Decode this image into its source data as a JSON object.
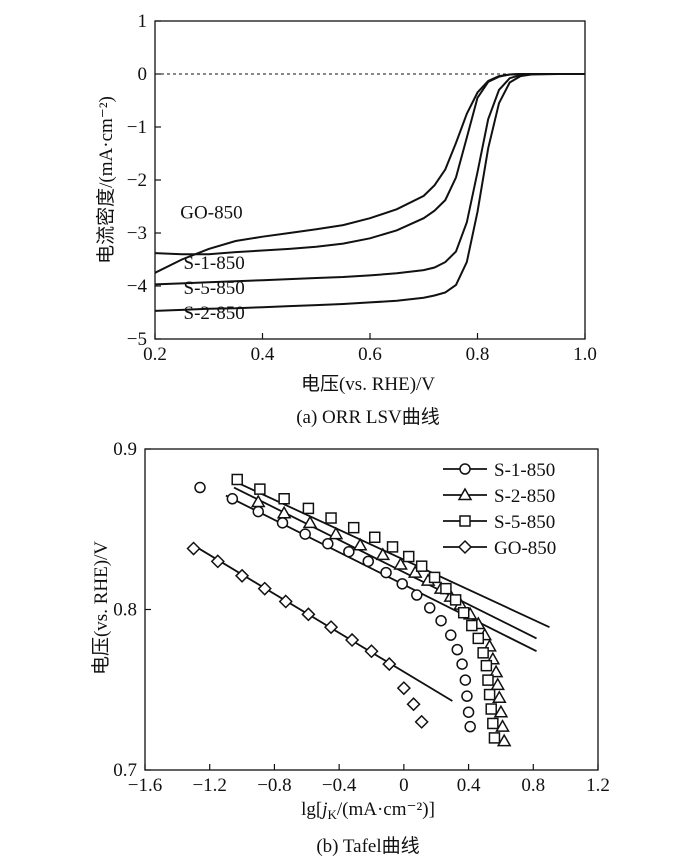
{
  "chart_data": [
    {
      "type": "line",
      "caption": "(a) ORR LSV曲线",
      "xlabel": "电压(vs. RHE)/V",
      "ylabel": "电流密度/(mA·cm⁻²)",
      "xlim": [
        0.2,
        1.0
      ],
      "ylim": [
        -5,
        1
      ],
      "xticks": [
        "0.2",
        "0.4",
        "0.6",
        "0.8",
        "1.0"
      ],
      "yticks": [
        "1",
        "0",
        "−1",
        "−2",
        "−3",
        "−4",
        "−5"
      ],
      "reference_line_y": 0,
      "series": [
        {
          "name": "GO-850",
          "label": "GO-850",
          "x": [
            0.2,
            0.25,
            0.3,
            0.35,
            0.4,
            0.45,
            0.5,
            0.55,
            0.6,
            0.65,
            0.7,
            0.72,
            0.74,
            0.76,
            0.78,
            0.8,
            0.82,
            0.84,
            0.86,
            0.88,
            0.9,
            0.95,
            1.0
          ],
          "y": [
            -3.75,
            -3.5,
            -3.3,
            -3.15,
            -3.07,
            -3.0,
            -2.93,
            -2.85,
            -2.72,
            -2.55,
            -2.3,
            -2.1,
            -1.8,
            -1.3,
            -0.75,
            -0.35,
            -0.13,
            -0.04,
            -0.01,
            0.0,
            0.0,
            0.0,
            0.0
          ]
        },
        {
          "name": "S-1-850",
          "label": "S-1-850",
          "x": [
            0.2,
            0.25,
            0.3,
            0.35,
            0.4,
            0.45,
            0.5,
            0.55,
            0.6,
            0.65,
            0.7,
            0.72,
            0.74,
            0.76,
            0.78,
            0.8,
            0.82,
            0.84,
            0.86,
            0.88,
            0.9,
            0.95,
            1.0
          ],
          "y": [
            -3.38,
            -3.4,
            -3.4,
            -3.36,
            -3.33,
            -3.3,
            -3.26,
            -3.2,
            -3.1,
            -2.95,
            -2.72,
            -2.58,
            -2.38,
            -1.95,
            -1.2,
            -0.45,
            -0.15,
            -0.05,
            -0.01,
            0.0,
            0.0,
            0.0,
            0.0
          ]
        },
        {
          "name": "S-5-850",
          "label": "S-5-850",
          "x": [
            0.2,
            0.25,
            0.3,
            0.35,
            0.4,
            0.45,
            0.5,
            0.55,
            0.6,
            0.65,
            0.7,
            0.72,
            0.74,
            0.76,
            0.78,
            0.8,
            0.82,
            0.84,
            0.86,
            0.88,
            0.9,
            0.95,
            1.0
          ],
          "y": [
            -3.97,
            -3.95,
            -3.93,
            -3.91,
            -3.89,
            -3.87,
            -3.85,
            -3.83,
            -3.8,
            -3.76,
            -3.7,
            -3.65,
            -3.55,
            -3.35,
            -2.8,
            -1.85,
            -0.85,
            -0.3,
            -0.08,
            -0.02,
            0.0,
            0.0,
            0.0
          ]
        },
        {
          "name": "S-2-850",
          "label": "S-2-850",
          "x": [
            0.2,
            0.25,
            0.3,
            0.35,
            0.4,
            0.45,
            0.5,
            0.55,
            0.6,
            0.65,
            0.7,
            0.72,
            0.74,
            0.76,
            0.78,
            0.8,
            0.82,
            0.84,
            0.86,
            0.88,
            0.9,
            0.95,
            1.0
          ],
          "y": [
            -4.47,
            -4.45,
            -4.43,
            -4.42,
            -4.4,
            -4.38,
            -4.36,
            -4.34,
            -4.31,
            -4.28,
            -4.22,
            -4.18,
            -4.12,
            -3.98,
            -3.55,
            -2.6,
            -1.4,
            -0.55,
            -0.16,
            -0.04,
            -0.01,
            0.0,
            0.0
          ]
        }
      ]
    },
    {
      "type": "scatter",
      "caption": "(b) Tafel曲线",
      "xlabel": "lg[jK/(mA·cm⁻²)]",
      "ylabel": "电压(vs. RHE)/V",
      "xlim": [
        -1.6,
        1.2
      ],
      "ylim": [
        0.7,
        0.9
      ],
      "xticks": [
        "−1.6",
        "−1.2",
        "−0.8",
        "−0.4",
        "0",
        "0.4",
        "0.8",
        "1.2"
      ],
      "yticks": [
        "0.9",
        "0.8",
        "0.7"
      ],
      "legend_position": "top-right",
      "series": [
        {
          "name": "S-1-850",
          "marker": "circle",
          "x": [
            -1.26,
            -1.06,
            -0.9,
            -0.75,
            -0.61,
            -0.47,
            -0.34,
            -0.22,
            -0.11,
            -0.01,
            0.08,
            0.16,
            0.23,
            0.29,
            0.33,
            0.36,
            0.38,
            0.39,
            0.4,
            0.41
          ],
          "y": [
            0.876,
            0.869,
            0.861,
            0.854,
            0.847,
            0.841,
            0.836,
            0.83,
            0.823,
            0.816,
            0.809,
            0.801,
            0.793,
            0.784,
            0.775,
            0.766,
            0.756,
            0.746,
            0.736,
            0.727
          ],
          "fit": {
            "x": [
              -1.1,
              0.82
            ],
            "y": [
              0.871,
              0.774
            ]
          }
        },
        {
          "name": "S-2-850",
          "marker": "triangle",
          "x": [
            -0.9,
            -0.74,
            -0.58,
            -0.42,
            -0.27,
            -0.13,
            -0.02,
            0.07,
            0.15,
            0.23,
            0.29,
            0.35,
            0.41,
            0.46,
            0.5,
            0.53,
            0.55,
            0.57,
            0.58,
            0.59,
            0.6,
            0.61,
            0.62
          ],
          "y": [
            0.867,
            0.86,
            0.854,
            0.847,
            0.84,
            0.834,
            0.828,
            0.823,
            0.818,
            0.813,
            0.808,
            0.803,
            0.797,
            0.791,
            0.784,
            0.777,
            0.769,
            0.761,
            0.753,
            0.745,
            0.736,
            0.727,
            0.718
          ],
          "fit": {
            "x": [
              -1.05,
              0.82
            ],
            "y": [
              0.876,
              0.782
            ]
          }
        },
        {
          "name": "S-5-850",
          "marker": "square",
          "x": [
            -1.03,
            -0.89,
            -0.74,
            -0.59,
            -0.45,
            -0.31,
            -0.18,
            -0.07,
            0.03,
            0.11,
            0.19,
            0.26,
            0.32,
            0.37,
            0.42,
            0.46,
            0.49,
            0.51,
            0.52,
            0.53,
            0.54,
            0.55,
            0.56
          ],
          "y": [
            0.881,
            0.875,
            0.869,
            0.863,
            0.857,
            0.851,
            0.845,
            0.839,
            0.833,
            0.827,
            0.82,
            0.813,
            0.806,
            0.798,
            0.79,
            0.782,
            0.773,
            0.765,
            0.756,
            0.747,
            0.738,
            0.729,
            0.72
          ],
          "fit": {
            "x": [
              -1.05,
              0.9
            ],
            "y": [
              0.88,
              0.789
            ]
          }
        },
        {
          "name": "GO-850",
          "marker": "diamond",
          "x": [
            -1.3,
            -1.15,
            -1.0,
            -0.86,
            -0.73,
            -0.59,
            -0.45,
            -0.32,
            -0.2,
            -0.09,
            0.0,
            0.06,
            0.11
          ],
          "y": [
            0.838,
            0.83,
            0.821,
            0.813,
            0.805,
            0.797,
            0.789,
            0.781,
            0.774,
            0.766,
            0.751,
            0.741,
            0.73
          ],
          "fit": {
            "x": [
              -1.3,
              0.3
            ],
            "y": [
              0.84,
              0.743
            ]
          }
        }
      ]
    }
  ]
}
